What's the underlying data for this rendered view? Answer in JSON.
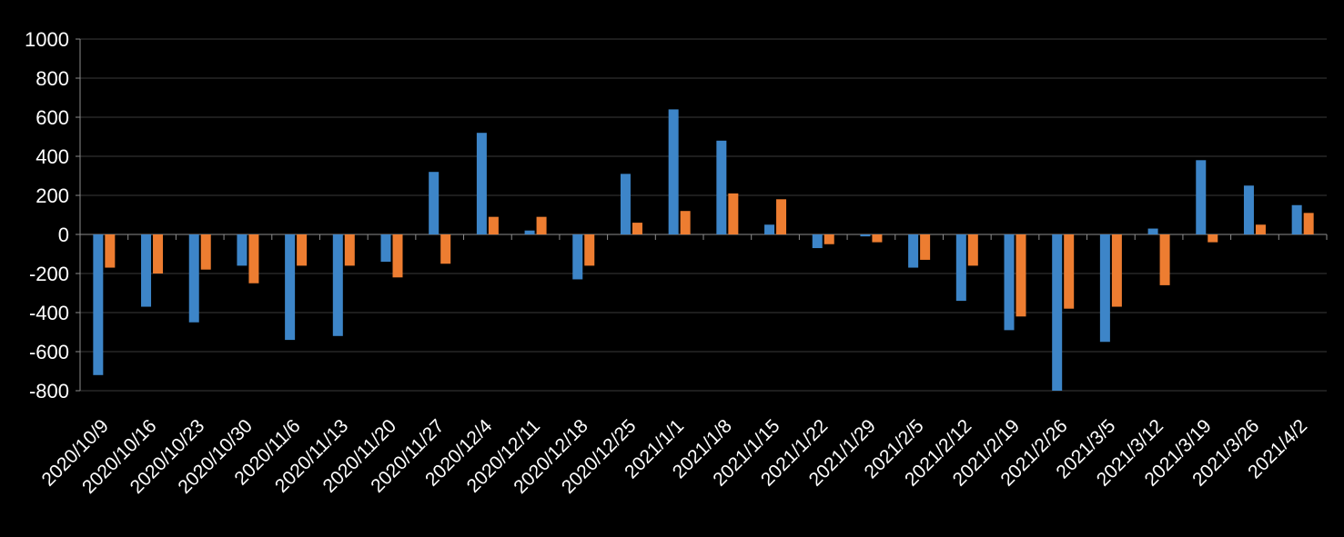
{
  "chart_data": {
    "type": "bar",
    "title": "",
    "xlabel": "",
    "ylabel": "",
    "legend": "none",
    "grid": true,
    "ylim": [
      -800,
      1000
    ],
    "ytick_step": 200,
    "yticks": [
      1000,
      800,
      600,
      400,
      200,
      0,
      -200,
      -400,
      -600,
      -800
    ],
    "categories": [
      "2020/10/9",
      "2020/10/16",
      "2020/10/23",
      "2020/10/30",
      "2020/11/6",
      "2020/11/13",
      "2020/11/20",
      "2020/11/27",
      "2020/12/4",
      "2020/12/11",
      "2020/12/18",
      "2020/12/25",
      "2021/1/1",
      "2021/1/8",
      "2021/1/15",
      "2021/1/22",
      "2021/1/29",
      "2021/2/5",
      "2021/2/12",
      "2021/2/19",
      "2021/2/26",
      "2021/3/5",
      "2021/3/12",
      "2021/3/19",
      "2021/3/26",
      "2021/4/2"
    ],
    "series": [
      {
        "name": "blue-series",
        "color": "#3D85C8",
        "values": [
          -720,
          -370,
          -450,
          -160,
          -540,
          -520,
          -140,
          320,
          520,
          20,
          -230,
          310,
          640,
          480,
          50,
          -70,
          -10,
          -170,
          -340,
          -490,
          -800,
          -550,
          30,
          380,
          250,
          150
        ]
      },
      {
        "name": "orange-series",
        "color": "#ED7D31",
        "values": [
          -170,
          -200,
          -180,
          -250,
          -160,
          -160,
          -220,
          -150,
          90,
          90,
          -160,
          60,
          120,
          210,
          180,
          -50,
          -40,
          -130,
          -160,
          -420,
          -380,
          -370,
          -260,
          -40,
          50,
          110
        ]
      }
    ],
    "colors": {
      "background": "#000000",
      "text": "#FFFFFF",
      "gridline": "#3A3A3A",
      "axis": "#8C8C8C"
    }
  }
}
